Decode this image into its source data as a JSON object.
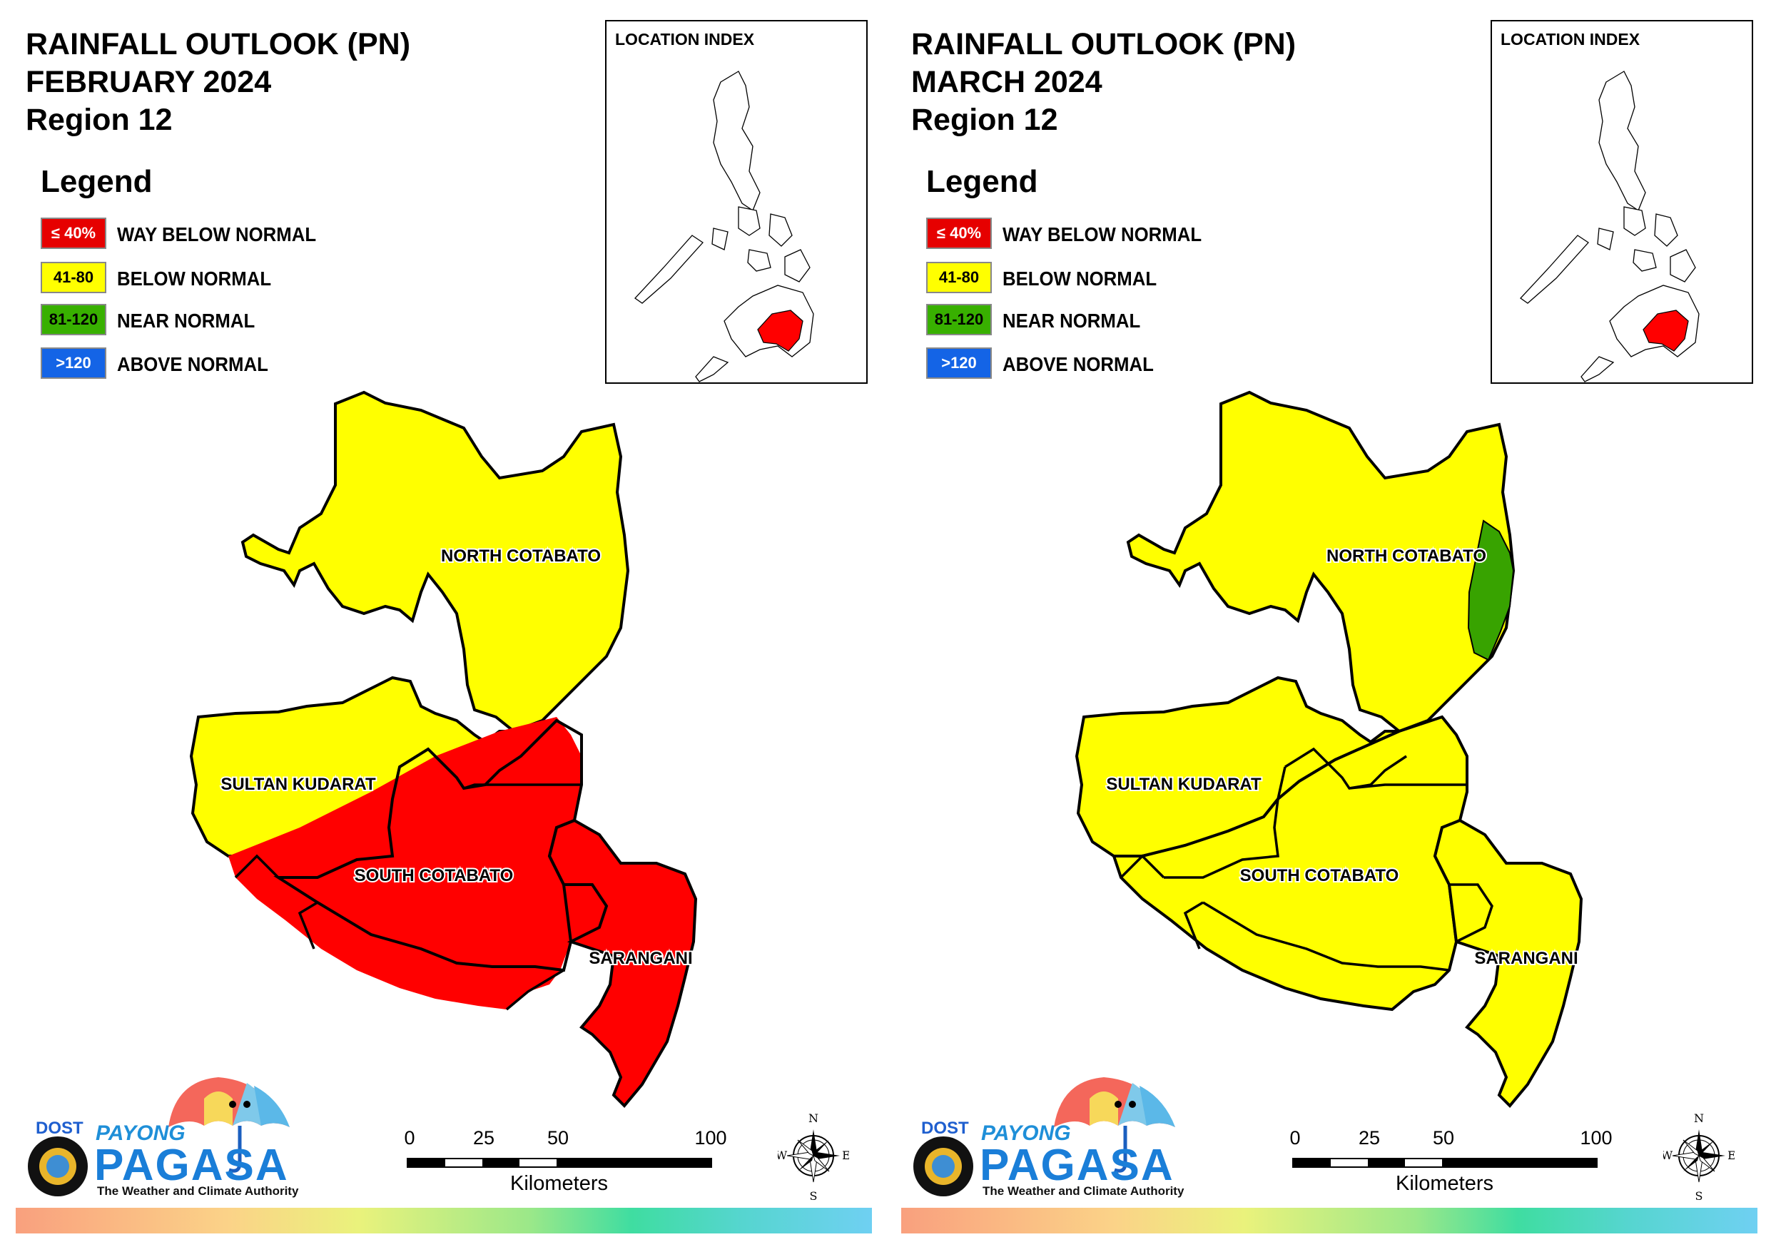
{
  "panels": [
    {
      "title_line1": "RAINFALL OUTLOOK (PN)",
      "title_line2": "FEBRUARY 2024",
      "title_line3": "Region 12",
      "inset_title": "LOCATION INDEX",
      "provinces": {
        "north_cotabato": {
          "label": "NORTH COTABATO",
          "category": "BELOW NORMAL",
          "color": "#ffff00"
        },
        "sultan_kudarat": {
          "label": "SULTAN KUDARAT",
          "category": "BELOW NORMAL / WAY BELOW NORMAL",
          "color": "#ffff00"
        },
        "south_cotabato": {
          "label": "SOUTH COTABATO",
          "category": "WAY BELOW NORMAL",
          "color": "#ff0000"
        },
        "sarangani": {
          "label": "SARANGANI",
          "category": "WAY BELOW NORMAL",
          "color": "#ff0000"
        }
      }
    },
    {
      "title_line1": "RAINFALL OUTLOOK (PN)",
      "title_line2": "MARCH 2024",
      "title_line3": "Region 12",
      "inset_title": "LOCATION INDEX",
      "provinces": {
        "north_cotabato": {
          "label": "NORTH COTABATO",
          "category": "BELOW NORMAL / NEAR NORMAL",
          "color": "#ffff00"
        },
        "sultan_kudarat": {
          "label": "SULTAN KUDARAT",
          "category": "BELOW NORMAL",
          "color": "#ffff00"
        },
        "south_cotabato": {
          "label": "SOUTH COTABATO",
          "category": "BELOW NORMAL",
          "color": "#ffff00"
        },
        "sarangani": {
          "label": "SARANGANI",
          "category": "BELOW NORMAL",
          "color": "#ffff00"
        }
      }
    }
  ],
  "legend": {
    "heading": "Legend",
    "items": [
      {
        "range": "≤ 40%",
        "label": "WAY BELOW NORMAL",
        "color": "#e60000",
        "text_color": "#ffffff"
      },
      {
        "range": "41-80",
        "label": "BELOW NORMAL",
        "color": "#ffff00",
        "text_color": "#000000"
      },
      {
        "range": "81-120",
        "label": "NEAR NORMAL",
        "color": "#38b000",
        "text_color": "#000000"
      },
      {
        "range": ">120",
        "label": "ABOVE NORMAL",
        "color": "#1464e6",
        "text_color": "#ffffff"
      }
    ]
  },
  "scale": {
    "ticks": [
      "0",
      "25",
      "50",
      "100"
    ],
    "unit": "Kilometers"
  },
  "compass": {
    "n": "N",
    "s": "S",
    "e": "E",
    "w": "W"
  },
  "logo": {
    "dost": "DOST",
    "payong": "PAYONG",
    "pagasa": "PAGASA",
    "tagline": "The Weather and Climate Authority"
  }
}
